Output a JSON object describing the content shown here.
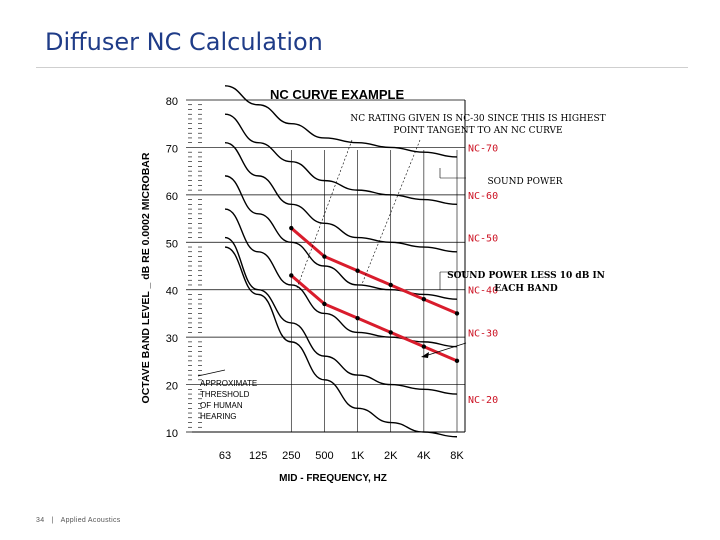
{
  "slide": {
    "title": "Diffuser NC Calculation",
    "footer_page": "34",
    "footer_separator": "|",
    "footer_text": "Applied Acoustics"
  },
  "colors": {
    "title": "#1f3c88",
    "curves": "#000000",
    "highlight": "#d91c2c",
    "nc_labels": "#cc1122"
  },
  "chart_data": {
    "type": "line",
    "title": "NC CURVE EXAMPLE",
    "xlabel": "MID - FREQUENCY, HZ",
    "ylabel": "OCTAVE BAND LEVEL _ dB RE 0.0002 MICROBAR",
    "x": [
      "63",
      "125",
      "250",
      "500",
      "1K",
      "2K",
      "4K",
      "8K"
    ],
    "yticks": [
      "80",
      "70",
      "60",
      "50",
      "40",
      "30",
      "20",
      "10"
    ],
    "ylim": [
      10,
      80
    ],
    "grid": false,
    "series": [
      {
        "name": "NC-70",
        "values": [
          83,
          79,
          75,
          72,
          71,
          70,
          69,
          68
        ]
      },
      {
        "name": "NC-60",
        "values": [
          77,
          71,
          67,
          63,
          61,
          60,
          59,
          58
        ]
      },
      {
        "name": "NC-50",
        "values": [
          71,
          64,
          58,
          54,
          51,
          50,
          49,
          48
        ]
      },
      {
        "name": "NC-40",
        "values": [
          64,
          56,
          50,
          45,
          41,
          40,
          39,
          38
        ]
      },
      {
        "name": "NC-30",
        "values": [
          57,
          48,
          41,
          35,
          31,
          30,
          29,
          28
        ]
      },
      {
        "name": "NC-20",
        "values": [
          51,
          40,
          33,
          26,
          22,
          20,
          19,
          18
        ]
      },
      {
        "name": "",
        "values": [
          49,
          39,
          29,
          21,
          15,
          12,
          10,
          9
        ]
      }
    ],
    "nc_labels": [
      {
        "text": "NC-70",
        "y": 70
      },
      {
        "text": "NC-60",
        "y": 60
      },
      {
        "text": "NC-50",
        "y": 51
      },
      {
        "text": "NC-40",
        "y": 40
      },
      {
        "text": "NC-30",
        "y": 31
      },
      {
        "text": "NC-20",
        "y": 17
      }
    ],
    "sound_power": {
      "x": [
        "250",
        "500",
        "1K",
        "2K",
        "4K",
        "8K"
      ],
      "values": [
        53,
        47,
        44,
        41,
        38,
        35
      ]
    },
    "sound_power_less_10db": {
      "x": [
        "250",
        "500",
        "1K",
        "2K",
        "4K",
        "8K"
      ],
      "values": [
        43,
        37,
        34,
        31,
        28,
        25
      ]
    },
    "annotations": {
      "rating_line1": "NC RATING GIVEN IS NC-30 SINCE THIS IS HIGHEST",
      "rating_line2": "POINT TANGENT TO AN NC CURVE",
      "sound_power": "SOUND POWER",
      "sound_power_less_line1": "SOUND POWER LESS 10 dB IN",
      "sound_power_less_line2": "EACH BAND",
      "threshold_lines": [
        "APPROXIMATE",
        "THRESHOLD",
        "OF HUMAN",
        "HEARING"
      ]
    }
  }
}
